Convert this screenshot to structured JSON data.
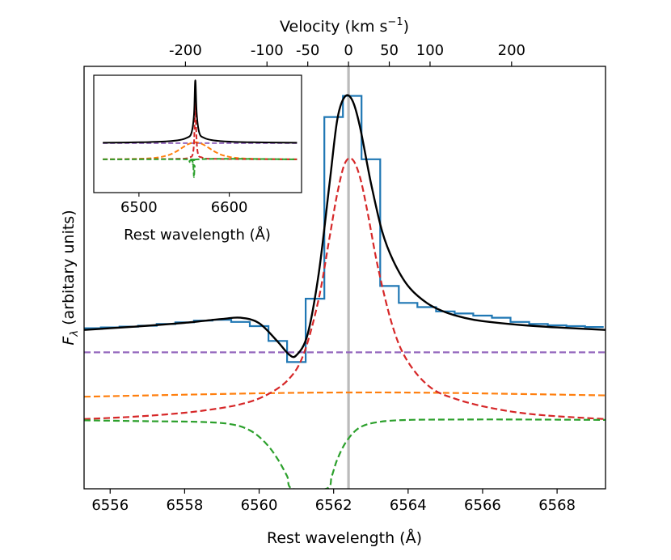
{
  "chart_data": {
    "type": "line",
    "xlabel": "Rest wavelength (Å)",
    "x2label": "Velocity (km s",
    "x2label_sup": "−1",
    "x2label_close": ")",
    "ylabel_symbol": "F",
    "ylabel_sub": "λ",
    "ylabel_text": " (arbitary units)",
    "xlim": [
      6555.3,
      6569.3
    ],
    "ylim": [
      0.0,
      1.0
    ],
    "xticks": [
      "6556",
      "6558",
      "6560",
      "6562",
      "6564",
      "6566",
      "6568"
    ],
    "velocity_ticks": [
      "-200",
      "-100",
      "-50",
      "0",
      "50",
      "100",
      "200"
    ],
    "velocity_ref_wavelength": 6562.4,
    "observed_spectrum": {
      "color": "#1f77b4",
      "style": "steps-mid",
      "x": [
        6555.5,
        6556.0,
        6556.5,
        6557.0,
        6557.5,
        6558.0,
        6558.5,
        6559.0,
        6559.5,
        6560.0,
        6560.5,
        6561.0,
        6561.5,
        6562.0,
        6562.5,
        6563.0,
        6563.5,
        6564.0,
        6564.5,
        6565.0,
        6565.5,
        6566.0,
        6566.5,
        6567.0,
        6567.5,
        6568.0,
        6568.5,
        6569.0
      ],
      "y": [
        0.38,
        0.382,
        0.384,
        0.386,
        0.39,
        0.394,
        0.398,
        0.4,
        0.395,
        0.385,
        0.35,
        0.3,
        0.45,
        0.88,
        0.93,
        0.78,
        0.48,
        0.44,
        0.43,
        0.42,
        0.415,
        0.41,
        0.405,
        0.395,
        0.39,
        0.387,
        0.385,
        0.383
      ]
    },
    "model_total": {
      "color": "#000000",
      "x": [
        6555.3,
        6556.0,
        6557.0,
        6558.0,
        6559.0,
        6559.5,
        6560.0,
        6560.5,
        6560.8,
        6561.0,
        6561.3,
        6561.6,
        6561.9,
        6562.1,
        6562.3,
        6562.5,
        6562.7,
        6563.0,
        6563.3,
        6563.6,
        6564.0,
        6564.5,
        6565.0,
        6565.5,
        6566.0,
        6567.0,
        6568.0,
        6569.3
      ],
      "y": [
        0.376,
        0.38,
        0.386,
        0.393,
        0.402,
        0.405,
        0.392,
        0.348,
        0.318,
        0.316,
        0.365,
        0.51,
        0.73,
        0.875,
        0.928,
        0.92,
        0.86,
        0.725,
        0.61,
        0.54,
        0.48,
        0.44,
        0.418,
        0.405,
        0.397,
        0.388,
        0.382,
        0.376
      ]
    },
    "components": [
      {
        "color": "#9467bd",
        "style": "dashed",
        "x": [
          6555.3,
          6569.3
        ],
        "y": [
          0.323,
          0.323
        ]
      },
      {
        "color": "#ff7f0e",
        "style": "dashed",
        "x": [
          6555.3,
          6560.0,
          6562.4,
          6565.0,
          6569.3
        ],
        "y": [
          0.218,
          0.226,
          0.228,
          0.227,
          0.221
        ]
      },
      {
        "color": "#d62728",
        "style": "dashed",
        "x": [
          6555.3,
          6556.5,
          6557.5,
          6558.5,
          6559.5,
          6560.2,
          6560.8,
          6561.2,
          6561.6,
          6561.9,
          6562.1,
          6562.3,
          6562.5,
          6562.7,
          6562.9,
          6563.2,
          6563.6,
          6564.0,
          6564.6,
          6565.3,
          6566.3,
          6567.5,
          6569.3
        ],
        "y": [
          0.165,
          0.17,
          0.176,
          0.185,
          0.2,
          0.222,
          0.26,
          0.32,
          0.45,
          0.6,
          0.7,
          0.77,
          0.78,
          0.74,
          0.66,
          0.52,
          0.38,
          0.3,
          0.24,
          0.212,
          0.19,
          0.175,
          0.165
        ]
      },
      {
        "color": "#2ca02c",
        "style": "dashed",
        "x": [
          6555.3,
          6557.0,
          6558.5,
          6559.3,
          6559.8,
          6560.2,
          6560.5,
          6560.75,
          6560.9,
          6561.8,
          6561.95,
          6562.1,
          6562.35,
          6562.7,
          6563.2,
          6564.0,
          6565.5,
          6567.0,
          6569.3
        ],
        "y": [
          0.162,
          0.16,
          0.158,
          0.152,
          0.136,
          0.106,
          0.07,
          0.03,
          0.0,
          0.0,
          0.03,
          0.07,
          0.113,
          0.145,
          0.158,
          0.163,
          0.164,
          0.164,
          0.163
        ]
      }
    ],
    "rest_line": {
      "x": 6562.4,
      "color": "#bbbbbb"
    },
    "inset": {
      "xlabel": "Rest wavelength (Å)",
      "xticks": [
        "6500",
        "6600"
      ],
      "xlim": [
        6450,
        6680
      ],
      "ylim": [
        0.0,
        1.0
      ],
      "model_total": {
        "color": "#000000",
        "x": [
          6460,
          6500,
          6530,
          6545,
          6553,
          6558,
          6561,
          6562.4,
          6564,
          6567,
          6572,
          6580,
          6595,
          6625,
          6675
        ],
        "y": [
          0.285,
          0.29,
          0.3,
          0.315,
          0.34,
          0.39,
          0.6,
          0.98,
          0.6,
          0.39,
          0.34,
          0.315,
          0.3,
          0.29,
          0.285
        ]
      },
      "components": [
        {
          "color": "#9467bd",
          "style": "dashed",
          "x": [
            6460,
            6675
          ],
          "y": [
            0.28,
            0.28
          ]
        },
        {
          "color": "#ff7f0e",
          "style": "dashed",
          "x": [
            6460,
            6510,
            6530,
            6540,
            6548,
            6555,
            6562.4,
            6570,
            6577,
            6585,
            6595,
            6615,
            6675
          ],
          "y": [
            0.1,
            0.11,
            0.14,
            0.18,
            0.23,
            0.27,
            0.29,
            0.27,
            0.23,
            0.18,
            0.14,
            0.11,
            0.1
          ]
        },
        {
          "color": "#d62728",
          "style": "dashed",
          "x": [
            6460,
            6540,
            6555,
            6560,
            6561.7,
            6562.4,
            6563.1,
            6565,
            6570,
            6585,
            6675
          ],
          "y": [
            0.1,
            0.105,
            0.12,
            0.18,
            0.5,
            0.85,
            0.5,
            0.18,
            0.12,
            0.105,
            0.1
          ]
        },
        {
          "color": "#2ca02c",
          "style": "dashed",
          "x": [
            6460,
            6555,
            6559,
            6560.2,
            6561,
            6561.8,
            6565,
            6675
          ],
          "y": [
            0.1,
            0.1,
            0.08,
            0.02,
            -0.1,
            0.02,
            0.1,
            0.1
          ]
        }
      ]
    }
  }
}
